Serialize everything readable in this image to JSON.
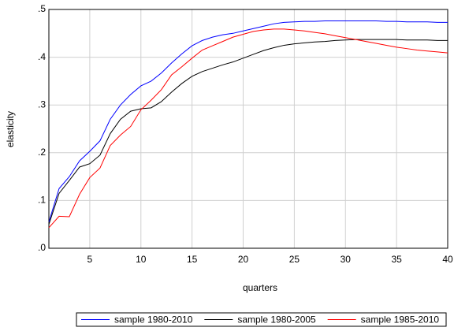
{
  "chart_data": {
    "type": "line",
    "x_label": "quarters",
    "y_label": "elasticity",
    "x": [
      1,
      2,
      3,
      4,
      5,
      6,
      7,
      8,
      9,
      10,
      11,
      12,
      13,
      14,
      15,
      16,
      17,
      18,
      19,
      20,
      21,
      22,
      23,
      24,
      25,
      26,
      27,
      28,
      29,
      30,
      31,
      32,
      33,
      34,
      35,
      36,
      37,
      38,
      39,
      40
    ],
    "series": [
      {
        "name": "sample 1980-2010",
        "color": "#0000ff",
        "values": [
          0.055,
          0.125,
          0.15,
          0.183,
          0.203,
          0.225,
          0.27,
          0.3,
          0.322,
          0.34,
          0.35,
          0.367,
          0.388,
          0.407,
          0.424,
          0.435,
          0.442,
          0.447,
          0.45,
          0.455,
          0.46,
          0.465,
          0.47,
          0.473,
          0.474,
          0.475,
          0.475,
          0.476,
          0.476,
          0.476,
          0.476,
          0.476,
          0.476,
          0.475,
          0.475,
          0.474,
          0.474,
          0.474,
          0.473,
          0.473
        ]
      },
      {
        "name": "sample 1980-2005",
        "color": "#000000",
        "values": [
          0.05,
          0.115,
          0.142,
          0.17,
          0.177,
          0.195,
          0.24,
          0.27,
          0.287,
          0.292,
          0.294,
          0.307,
          0.327,
          0.345,
          0.36,
          0.37,
          0.377,
          0.384,
          0.39,
          0.398,
          0.406,
          0.414,
          0.42,
          0.425,
          0.428,
          0.43,
          0.432,
          0.433,
          0.435,
          0.436,
          0.437,
          0.437,
          0.437,
          0.437,
          0.437,
          0.436,
          0.436,
          0.436,
          0.435,
          0.435
        ]
      },
      {
        "name": "sample 1985-2010",
        "color": "#ff0000",
        "values": [
          0.043,
          0.067,
          0.066,
          0.113,
          0.148,
          0.168,
          0.215,
          0.237,
          0.255,
          0.29,
          0.31,
          0.332,
          0.363,
          0.38,
          0.398,
          0.415,
          0.424,
          0.433,
          0.442,
          0.448,
          0.454,
          0.457,
          0.459,
          0.459,
          0.457,
          0.455,
          0.452,
          0.449,
          0.445,
          0.441,
          0.437,
          0.433,
          0.429,
          0.425,
          0.421,
          0.418,
          0.415,
          0.413,
          0.411,
          0.409
        ]
      }
    ],
    "xlim": [
      1,
      40
    ],
    "xticks": [
      5,
      10,
      15,
      20,
      25,
      30,
      35,
      40
    ],
    "ylim": [
      0,
      0.5
    ],
    "yticks": [
      {
        "value": 0,
        "label": ".0"
      },
      {
        "value": 0.1,
        "label": ".1"
      },
      {
        "value": 0.2,
        "label": ".2"
      },
      {
        "value": 0.3,
        "label": ".3"
      },
      {
        "value": 0.4,
        "label": ".4"
      },
      {
        "value": 0.5,
        "label": ".5"
      }
    ],
    "grid": true,
    "legend": "bottom"
  }
}
